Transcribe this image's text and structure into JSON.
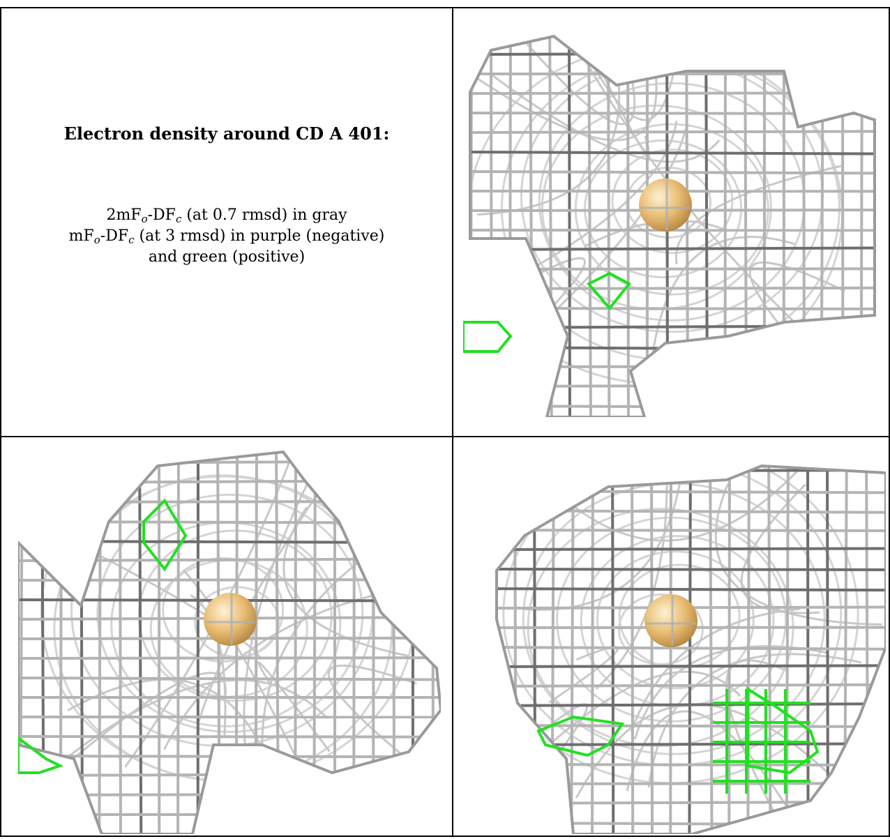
{
  "caption": {
    "title": "Electron density around CD A 401:",
    "line1": {
      "a": "2mF",
      "sub1": "o",
      "b": "-DF",
      "sub2": "c",
      "c": " (at 0.7 rmsd) in gray"
    },
    "line2": {
      "a": "mF",
      "sub1": "o",
      "b": "-DF",
      "sub2": "c",
      "c": " (at 3 rmsd) in purple (negative)"
    },
    "line3": "and green (positive)"
  },
  "colors": {
    "mesh_gray": "#b4b4b4",
    "mesh_dark": "#6e6e6e",
    "positive_green": "#22e022",
    "atom_gold": "#e8bc72",
    "border": "#000000"
  },
  "panels": [
    {
      "name": "view-top-right",
      "atom": "CD A 401"
    },
    {
      "name": "view-bottom-left",
      "atom": "CD A 401"
    },
    {
      "name": "view-bottom-right",
      "atom": "CD A 401"
    }
  ]
}
